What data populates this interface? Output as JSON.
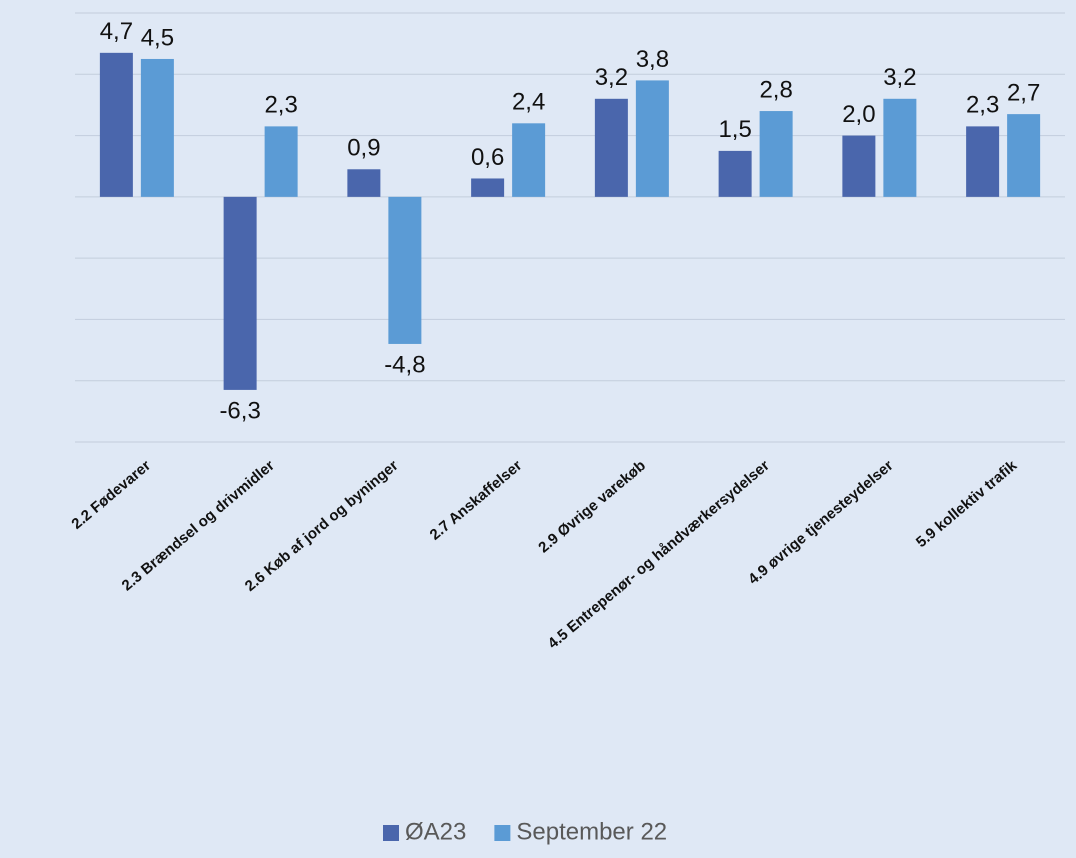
{
  "chart_data": {
    "type": "bar",
    "categories": [
      "2.2 Fødevarer",
      "2.3 Brændsel og drivmidler",
      "2.6 Køb af jord og byninger",
      "2.7 Anskaffelser",
      "2.9 Øvrige varekøb",
      "4.5 Entrepenør- og håndværkersydelser",
      "4.9 øvrige tjenesteydelser",
      "5.9 kollektiv trafik"
    ],
    "series": [
      {
        "name": "ØA23",
        "color": "#4a66ac",
        "values": [
          4.7,
          -6.3,
          0.9,
          0.6,
          3.2,
          1.5,
          2.0,
          2.3
        ],
        "value_labels": [
          "4,7",
          "-6,3",
          "0,9",
          "0,6",
          "3,2",
          "1,5",
          "2,0",
          "2,3"
        ]
      },
      {
        "name": "September 22",
        "color": "#5b9bd5",
        "values": [
          4.5,
          2.3,
          -4.8,
          2.4,
          3.8,
          2.8,
          3.2,
          2.7
        ],
        "value_labels": [
          "4,5",
          "2,3",
          "-4,8",
          "2,4",
          "3,8",
          "2,8",
          "3,2",
          "2,7"
        ]
      }
    ],
    "ylim": [
      -8,
      6
    ],
    "yticks": [
      -8,
      -6,
      -4,
      -2,
      0,
      2,
      4,
      6
    ],
    "grid": true,
    "legend": "bottom"
  }
}
